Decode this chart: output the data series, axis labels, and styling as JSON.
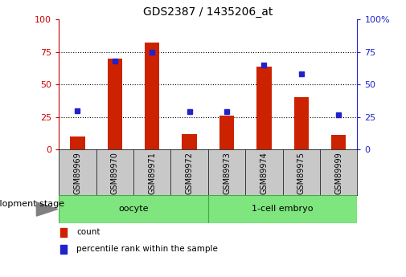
{
  "title": "GDS2387 / 1435206_at",
  "samples": [
    "GSM89969",
    "GSM89970",
    "GSM89971",
    "GSM89972",
    "GSM89973",
    "GSM89974",
    "GSM89975",
    "GSM89999"
  ],
  "count_values": [
    10,
    70,
    82,
    12,
    26,
    64,
    40,
    11
  ],
  "percentile_values": [
    30,
    68,
    75,
    29,
    29,
    65,
    58,
    27
  ],
  "bar_color": "#CC2200",
  "dot_color": "#2222CC",
  "ylim": [
    0,
    100
  ],
  "yticks": [
    0,
    25,
    50,
    75,
    100
  ],
  "tick_color_left": "#CC0000",
  "tick_color_right": "#2222CC",
  "bg_color": "#FFFFFF",
  "xlabel_area_color": "#C8C8C8",
  "group_oocyte_label": "oocyte",
  "group_embryo_label": "1-cell embryo",
  "group_color": "#7FE57F",
  "group_border_color": "#44AA44",
  "development_stage_label": "development stage",
  "legend_count": "count",
  "legend_percentile": "percentile rank within the sample",
  "bar_width": 0.4,
  "title_fontsize": 10,
  "tick_fontsize": 8,
  "label_fontsize": 7,
  "group_fontsize": 8,
  "dev_fontsize": 8,
  "legend_fontsize": 7.5
}
